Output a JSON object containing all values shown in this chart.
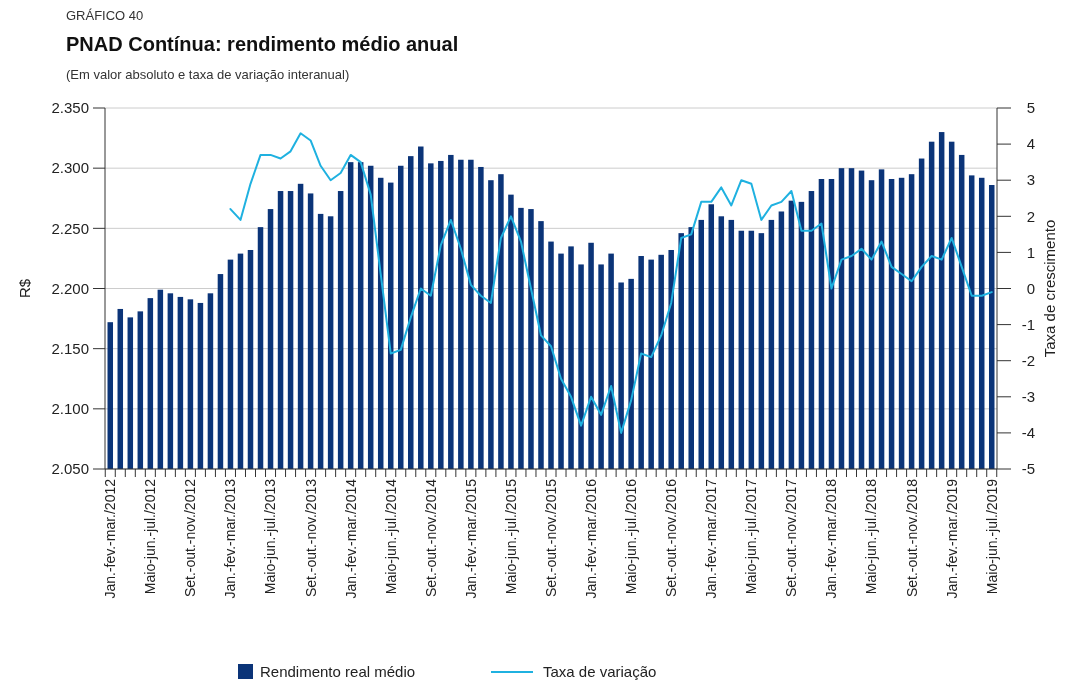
{
  "chart_data": {
    "type": "bar",
    "title": "PNAD Contínua: rendimento médio anual",
    "subtitle": "(Em valor absoluto e taxa de variação interanual)",
    "annotations": [
      "GRÁFICO 40"
    ],
    "ylabel": "R$",
    "y2label": "Taxa de crescimento",
    "categories": [
      "Jan.-fev.-mar./2012",
      null,
      null,
      null,
      "Maio-jun.-jul./2012",
      null,
      null,
      null,
      "Set.-out.-nov./2012",
      null,
      null,
      null,
      "Jan.-fev.-mar./2013",
      null,
      null,
      null,
      "Maio-jun.-jul./2013",
      null,
      null,
      null,
      "Set.-out.-nov./2013",
      null,
      null,
      null,
      "Jan.-fev.-mar./2014",
      null,
      null,
      null,
      "Maio-jun.-jul./2014",
      null,
      null,
      null,
      "Set.-out.-nov./2014",
      null,
      null,
      null,
      "Jan.-fev.-mar./2015",
      null,
      null,
      null,
      "Maio-jun.-jul./2015",
      null,
      null,
      null,
      "Set.-out.-nov./2015",
      null,
      null,
      null,
      "Jan.-fev.-mar./2016",
      null,
      null,
      null,
      "Maio-jun.-jul./2016",
      null,
      null,
      null,
      "Set.-out.-nov./2016",
      null,
      null,
      null,
      "Jan.-fev.-mar./2017",
      null,
      null,
      null,
      "Maio-jun.-jul./2017",
      null,
      null,
      null,
      "Set.-out.-nov./2017",
      null,
      null,
      null,
      "Jan.-fev.-mar./2018",
      null,
      null,
      null,
      "Maio-jun.-jul./2018",
      null,
      null,
      null,
      "Set.-out.-nov./2018",
      null,
      null,
      null,
      "Jan.-fev.-mar./2019",
      null,
      null,
      null,
      "Maio-jun.-jul./2019"
    ],
    "series": [
      {
        "name": "Rendimento real médio",
        "color": "#0b3478",
        "values": [
          2172,
          2183,
          2176,
          2181,
          2192,
          2199,
          2196,
          2193,
          2191,
          2188,
          2196,
          2212,
          2224,
          2229,
          2232,
          2251,
          2266,
          2281,
          2281,
          2287,
          2279,
          2262,
          2260,
          2281,
          2305,
          2305,
          2302,
          2292,
          2288,
          2302,
          2310,
          2318,
          2304,
          2306,
          2311,
          2307,
          2307,
          2301,
          2290,
          2295,
          2278,
          2267,
          2266,
          2256,
          2239,
          2229,
          2235,
          2220,
          2238,
          2220,
          2229,
          2205,
          2208,
          2227,
          2224,
          2228,
          2232,
          2246,
          2251,
          2257,
          2270,
          2260,
          2257,
          2248,
          2248,
          2246,
          2257,
          2264,
          2273,
          2272,
          2281,
          2291,
          2291,
          2300,
          2300,
          2298,
          2290,
          2299,
          2291,
          2292,
          2295,
          2308,
          2322,
          2330,
          2322,
          2311,
          2294,
          2292,
          2286
        ]
      },
      {
        "name": "Taxa de variação",
        "type": "line",
        "axis": "y2",
        "color": "#1fb1e0",
        "values": [
          null,
          null,
          null,
          null,
          null,
          null,
          null,
          null,
          null,
          null,
          null,
          null,
          2.2,
          1.9,
          2.9,
          3.7,
          3.7,
          3.6,
          3.8,
          4.3,
          4.1,
          3.4,
          3.0,
          3.2,
          3.7,
          3.5,
          2.6,
          0.4,
          -1.8,
          -1.7,
          -0.8,
          0.0,
          -0.2,
          1.2,
          1.9,
          1.1,
          0.1,
          -0.2,
          -0.4,
          1.4,
          2.0,
          1.3,
          0.0,
          -1.3,
          -1.6,
          -2.5,
          -3.0,
          -3.8,
          -3.0,
          -3.5,
          -2.7,
          -4.0,
          -3.1,
          -1.8,
          -1.9,
          -1.3,
          -0.4,
          1.4,
          1.5,
          2.4,
          2.4,
          2.8,
          2.3,
          3.0,
          2.9,
          1.9,
          2.3,
          2.4,
          2.7,
          1.6,
          1.6,
          1.8,
          0.0,
          0.8,
          0.9,
          1.1,
          0.8,
          1.3,
          0.6,
          0.4,
          0.2,
          0.6,
          0.9,
          0.8,
          1.4,
          0.6,
          -0.2,
          -0.2,
          -0.1
        ]
      }
    ],
    "ylim": [
      2050,
      2350
    ],
    "yticks": [
      {
        "value": 2050,
        "label": "2.050"
      },
      {
        "value": 2100,
        "label": "2.100"
      },
      {
        "value": 2150,
        "label": "2.150"
      },
      {
        "value": 2200,
        "label": "2.200"
      },
      {
        "value": 2250,
        "label": "2.250"
      },
      {
        "value": 2300,
        "label": "2.300"
      },
      {
        "value": 2350,
        "label": "2.350"
      }
    ],
    "y2lim": [
      -5,
      5
    ],
    "y2ticks": [
      -5,
      -4,
      -3,
      -2,
      -1,
      0,
      1,
      2,
      3,
      4,
      5
    ],
    "grid": "y",
    "legend": "bottom",
    "marker": "none",
    "line_style": "solid"
  }
}
